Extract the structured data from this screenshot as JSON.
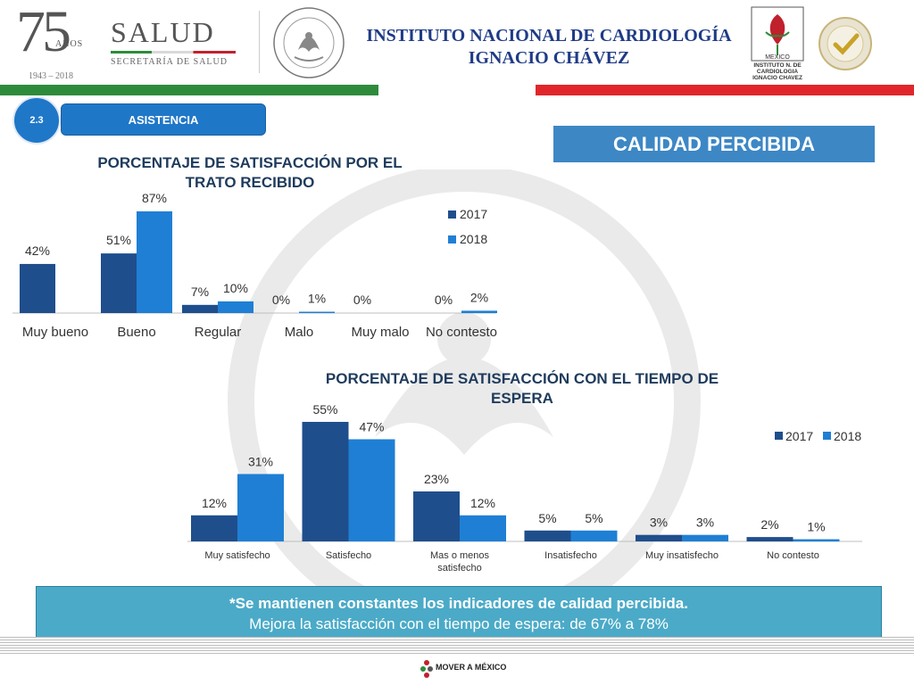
{
  "header": {
    "anniversary_number": "75",
    "anniversary_label": "AÑOS",
    "anniversary_years": "1943 – 2018",
    "salud_title": "SALUD",
    "salud_subtitle": "SECRETARÍA DE SALUD",
    "institute_line1": "INSTITUTO NACIONAL DE CARDIOLOGÍA",
    "institute_line2": "IGNACIO CHÁVEZ",
    "institute_logo_caption": "INSTITUTO N. DE CARDIOLOGIA IGNACIO CHAVEZ",
    "institute_logo_country": "MEXICO"
  },
  "section": {
    "number": "2.3",
    "name": "ASISTENCIA",
    "headline": "CALIDAD PERCIBIDA"
  },
  "icons": [
    "seal-icon",
    "institute-logo-icon",
    "quality-seal-icon",
    "mover-a-mexico-logo"
  ],
  "colors": {
    "series_2017": "#1f4e8c",
    "series_2018": "#1f7fd4",
    "accent_blue": "#1f77c8",
    "note_bg": "#4baac7",
    "green": "#2e8b3c",
    "red": "#e0262b"
  },
  "chart_data": [
    {
      "type": "bar",
      "title_line1": "PORCENTAJE DE SATISFACCIÓN POR EL",
      "title_line2": "TRATO RECIBIDO",
      "categories": [
        "Muy bueno",
        "Bueno",
        "Regular",
        "Malo",
        "Muy malo",
        "No contesto"
      ],
      "series": [
        {
          "name": "2017",
          "values": [
            42,
            51,
            7,
            0,
            0,
            0
          ],
          "labels": [
            "42%",
            "51%",
            "7%",
            "0%",
            "0%",
            "0%"
          ]
        },
        {
          "name": "2018",
          "values": [
            null,
            87,
            10,
            1,
            null,
            2
          ],
          "labels": [
            "",
            "87%",
            "10%",
            "1%",
            "",
            "2%"
          ]
        }
      ],
      "ylim": [
        0,
        90
      ],
      "legend": "right",
      "grid": false
    },
    {
      "type": "bar",
      "title_line1": "PORCENTAJE DE SATISFACCIÓN CON EL TIEMPO DE",
      "title_line2": "ESPERA",
      "categories": [
        "Muy satisfecho",
        "Satisfecho",
        "Mas o menos satisfecho",
        "Insatisfecho",
        "Muy insatisfecho",
        "No contesto"
      ],
      "category_lines": [
        [
          "Muy satisfecho"
        ],
        [
          "Satisfecho"
        ],
        [
          "Mas o menos",
          "satisfecho"
        ],
        [
          "Insatisfecho"
        ],
        [
          "Muy insatisfecho"
        ],
        [
          "No contesto"
        ]
      ],
      "series": [
        {
          "name": "2017",
          "values": [
            12,
            55,
            23,
            5,
            3,
            2
          ],
          "labels": [
            "12%",
            "55%",
            "23%",
            "5%",
            "3%",
            "2%"
          ]
        },
        {
          "name": "2018",
          "values": [
            31,
            47,
            12,
            5,
            3,
            1
          ],
          "labels": [
            "31%",
            "47%",
            "12%",
            "5%",
            "3%",
            "1%"
          ]
        }
      ],
      "ylim": [
        0,
        55
      ],
      "legend": "top-right",
      "grid": false
    }
  ],
  "note": {
    "line1": "*Se mantienen constantes los indicadores de calidad percibida.",
    "line2": "Mejora la satisfacción con el tiempo de espera: de 67% a 78%"
  },
  "footer": {
    "mover_label": "MOVER A MÉXICO"
  }
}
